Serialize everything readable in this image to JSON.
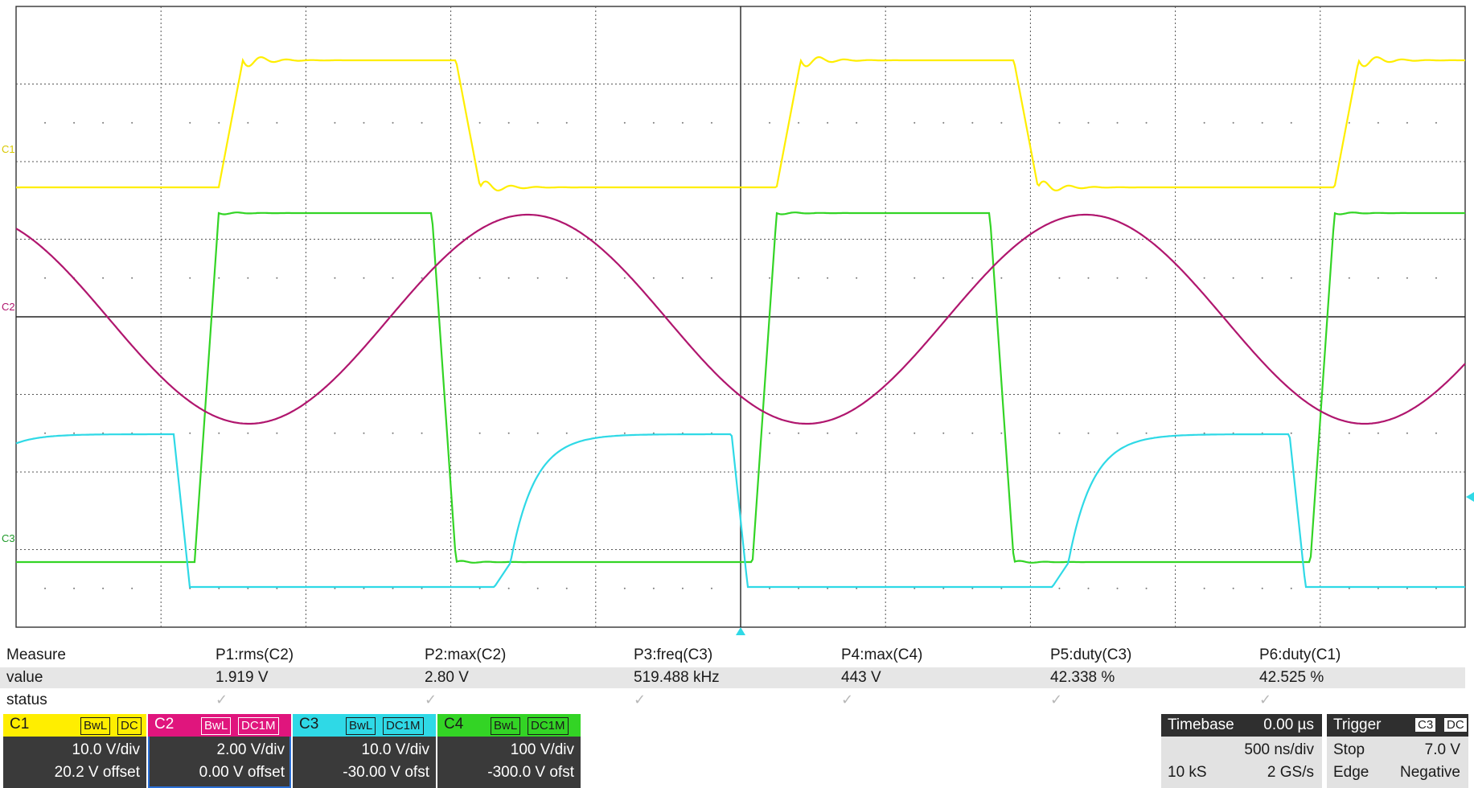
{
  "channels_on_screen": {
    "c1_marker": "C1",
    "c2_marker": "C2",
    "c3_marker": "C3"
  },
  "colors": {
    "c1": "#ffee00",
    "c2": "#b0166e",
    "c3": "#2fd9e6",
    "c4": "#33d425",
    "grid": "#444444"
  },
  "measure": {
    "row_labels": {
      "measure": "Measure",
      "value": "value",
      "status": "status"
    },
    "params": [
      {
        "name": "P1:rms(C2)",
        "value": "1.919 V"
      },
      {
        "name": "P2:max(C2)",
        "value": "2.80 V"
      },
      {
        "name": "P3:freq(C3)",
        "value": "519.488 kHz"
      },
      {
        "name": "P4:max(C4)",
        "value": "443 V"
      },
      {
        "name": "P5:duty(C3)",
        "value": "42.338 %"
      },
      {
        "name": "P6:duty(C1)",
        "value": "42.525 %"
      }
    ],
    "status_mark": "✓"
  },
  "channel_boxes": [
    {
      "name": "C1",
      "bw": "BwL",
      "coupling": "DC",
      "vdiv": "10.0 V/div",
      "offset": "20.2 V offset",
      "color": "#ffee00",
      "textcolor": "#1a1a1a"
    },
    {
      "name": "C2",
      "bw": "BwL",
      "coupling": "DC1M",
      "vdiv": "2.00 V/div",
      "offset": "0.00 V offset",
      "color": "#e0157d",
      "textcolor": "#ffffff"
    },
    {
      "name": "C3",
      "bw": "BwL",
      "coupling": "DC1M",
      "vdiv": "10.0 V/div",
      "offset": "-30.00 V ofst",
      "color": "#2fd9e6",
      "textcolor": "#1a1a1a"
    },
    {
      "name": "C4",
      "bw": "BwL",
      "coupling": "DC1M",
      "vdiv": "100 V/div",
      "offset": "-300.0 V ofst",
      "color": "#33d425",
      "textcolor": "#1a1a1a"
    }
  ],
  "timebase": {
    "label": "Timebase",
    "delay": "0.00 µs",
    "tdiv": "500 ns/div",
    "samples": "10 kS",
    "rate": "2 GS/s"
  },
  "trigger": {
    "label": "Trigger",
    "source": "C3",
    "coupling": "DC",
    "mode": "Stop",
    "level": "7.0 V",
    "type": "Edge",
    "slope": "Negative"
  },
  "waveforms": {
    "period_us": 1.925,
    "time_per_div_us": 0.5,
    "c1_duty_pct": 42.525,
    "c3_duty_pct": 42.338
  }
}
